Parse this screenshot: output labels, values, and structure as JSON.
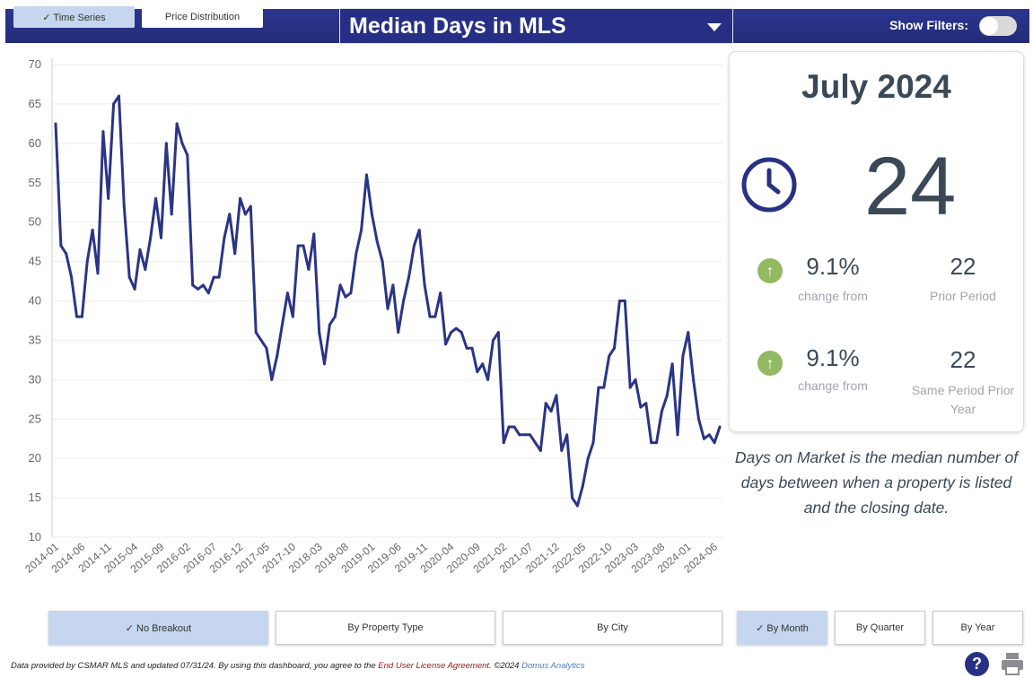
{
  "header": {
    "tabs": [
      {
        "label": "✓ Time Series",
        "active": true
      },
      {
        "label": "Price Distribution",
        "active": false
      }
    ],
    "metric_select": "Median Days in MLS",
    "show_filters_label": "Show Filters:",
    "show_filters_on": false
  },
  "card": {
    "period": "July 2024",
    "value": "24",
    "icon": "clock-icon",
    "comparisons": [
      {
        "change": "9.1%",
        "direction": "up",
        "change_label": "change from",
        "ref_value": "22",
        "ref_label": "Prior Period"
      },
      {
        "change": "9.1%",
        "direction": "up",
        "change_label": "change from",
        "ref_value": "22",
        "ref_label": "Same Period Prior Year"
      }
    ]
  },
  "description": "Days on Market is the median number of days between when a property is listed and the closing date.",
  "breakout_buttons": [
    {
      "label": "✓ No Breakout",
      "active": true
    },
    {
      "label": "By Property Type",
      "active": false
    },
    {
      "label": "By City",
      "active": false
    }
  ],
  "period_buttons": [
    {
      "label": "✓ By Month",
      "active": true
    },
    {
      "label": "By Quarter",
      "active": false
    },
    {
      "label": "By Year",
      "active": false
    }
  ],
  "footer": {
    "text": "Data provided by CSMAR MLS and updated 07/31/24.  By using this dashboard, you agree to the ",
    "eula": "End User License Agreement",
    "copyright": ".  ©2024 ",
    "company": "Domus Analytics"
  },
  "colors": {
    "header": "#2a3288",
    "line": "#2b3486",
    "active_button": "#c5d6ee",
    "up_arrow": "#93b963"
  },
  "chart_data": {
    "type": "line",
    "start": "2014-01",
    "frequency": "monthly",
    "ylim": [
      10,
      70
    ],
    "yticks": [
      10,
      15,
      20,
      25,
      30,
      35,
      40,
      45,
      50,
      55,
      60,
      65,
      70
    ],
    "xtick_labels": [
      "2014-01",
      "2014-06",
      "2014-11",
      "2015-04",
      "2015-09",
      "2016-02",
      "2016-07",
      "2016-12",
      "2017-05",
      "2017-10",
      "2018-03",
      "2018-08",
      "2019-01",
      "2019-06",
      "2019-11",
      "2020-04",
      "2020-09",
      "2021-02",
      "2021-07",
      "2021-12",
      "2022-05",
      "2022-10",
      "2023-03",
      "2023-08",
      "2024-01",
      "2024-06"
    ],
    "grid": true,
    "values": [
      62.5,
      47,
      46,
      43,
      38,
      38,
      45,
      49,
      43.5,
      61.5,
      53,
      65,
      66,
      52,
      43,
      41.5,
      46.5,
      44,
      48,
      53,
      48,
      60,
      51,
      62.5,
      60,
      58.5,
      42,
      41.5,
      42,
      41,
      43,
      43,
      48,
      51,
      46,
      53,
      51,
      52,
      36,
      35,
      34,
      30,
      33,
      37,
      41,
      38,
      47,
      47,
      44,
      48.5,
      36,
      32,
      37,
      38,
      42,
      40.5,
      41,
      46,
      49,
      56,
      51,
      47.5,
      45,
      39,
      42,
      36,
      40,
      43,
      47,
      49,
      42,
      38,
      38,
      41,
      34.5,
      36,
      36.5,
      36,
      34,
      34,
      31,
      32,
      30,
      35,
      36,
      22,
      24,
      24,
      23,
      23,
      23,
      22,
      21,
      27,
      26,
      28,
      21,
      23,
      15,
      14,
      16.5,
      20,
      22,
      29,
      29,
      33,
      34,
      40,
      40,
      29,
      30,
      26.5,
      27,
      22,
      22,
      26,
      28,
      32,
      23,
      33,
      36,
      30,
      25,
      22.5,
      23,
      22,
      24
    ]
  }
}
